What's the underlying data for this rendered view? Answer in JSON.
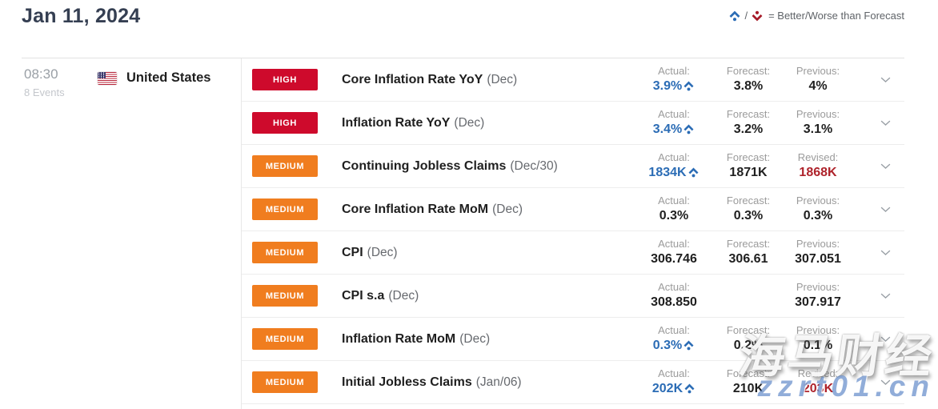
{
  "header": {
    "title": "Jan 11, 2024",
    "legend": {
      "separator": "/",
      "text": "= Better/Worse than Forecast"
    }
  },
  "session": {
    "time": "08:30",
    "events_count": "8 Events",
    "country": "United States"
  },
  "events": [
    {
      "importance": "HIGH",
      "name": "Core Inflation Rate YoY",
      "period": "(Dec)",
      "cells": [
        {
          "label": "Actual:",
          "value": "3.9%",
          "state": "better",
          "arrow": "up"
        },
        {
          "label": "Forecast:",
          "value": "3.8%",
          "state": "normal"
        },
        {
          "label": "Previous:",
          "value": "4%",
          "state": "normal"
        }
      ]
    },
    {
      "importance": "HIGH",
      "name": "Inflation Rate YoY",
      "period": "(Dec)",
      "cells": [
        {
          "label": "Actual:",
          "value": "3.4%",
          "state": "better",
          "arrow": "up"
        },
        {
          "label": "Forecast:",
          "value": "3.2%",
          "state": "normal"
        },
        {
          "label": "Previous:",
          "value": "3.1%",
          "state": "normal"
        }
      ]
    },
    {
      "importance": "MEDIUM",
      "name": "Continuing Jobless Claims",
      "period": "(Dec/30)",
      "cells": [
        {
          "label": "Actual:",
          "value": "1834K",
          "state": "better",
          "arrow": "up"
        },
        {
          "label": "Forecast:",
          "value": "1871K",
          "state": "normal"
        },
        {
          "label": "Revised:",
          "value": "1868K",
          "state": "revised"
        }
      ]
    },
    {
      "importance": "MEDIUM",
      "name": "Core Inflation Rate MoM",
      "period": "(Dec)",
      "cells": [
        {
          "label": "Actual:",
          "value": "0.3%",
          "state": "normal"
        },
        {
          "label": "Forecast:",
          "value": "0.3%",
          "state": "normal"
        },
        {
          "label": "Previous:",
          "value": "0.3%",
          "state": "normal"
        }
      ]
    },
    {
      "importance": "MEDIUM",
      "name": "CPI",
      "period": "(Dec)",
      "cells": [
        {
          "label": "Actual:",
          "value": "306.746",
          "state": "normal"
        },
        {
          "label": "Forecast:",
          "value": "306.61",
          "state": "normal"
        },
        {
          "label": "Previous:",
          "value": "307.051",
          "state": "normal"
        }
      ]
    },
    {
      "importance": "MEDIUM",
      "name": "CPI s.a",
      "period": "(Dec)",
      "cells": [
        {
          "label": "Actual:",
          "value": "308.850",
          "state": "normal"
        },
        {
          "label": "",
          "value": "",
          "state": "normal"
        },
        {
          "label": "Previous:",
          "value": "307.917",
          "state": "normal"
        }
      ]
    },
    {
      "importance": "MEDIUM",
      "name": "Inflation Rate MoM",
      "period": "(Dec)",
      "cells": [
        {
          "label": "Actual:",
          "value": "0.3%",
          "state": "better",
          "arrow": "up"
        },
        {
          "label": "Forecast:",
          "value": "0.2%",
          "state": "normal"
        },
        {
          "label": "Previous:",
          "value": "0.1%",
          "state": "normal"
        }
      ]
    },
    {
      "importance": "MEDIUM",
      "name": "Initial Jobless Claims",
      "period": "(Jan/06)",
      "cells": [
        {
          "label": "Actual:",
          "value": "202K",
          "state": "better",
          "arrow": "up"
        },
        {
          "label": "Forecast:",
          "value": "210K",
          "state": "normal"
        },
        {
          "label": "Revised:",
          "value": "203K",
          "state": "revised"
        }
      ]
    }
  ],
  "watermark": {
    "line1": "海马财经",
    "line2": "zzrt01.cn"
  },
  "colors": {
    "high_badge": "#ce0a2c",
    "medium_badge": "#f07d1f",
    "better_value": "#2b6cb5",
    "revised_value": "#ae232b",
    "normal_value": "#1f1f1f"
  }
}
